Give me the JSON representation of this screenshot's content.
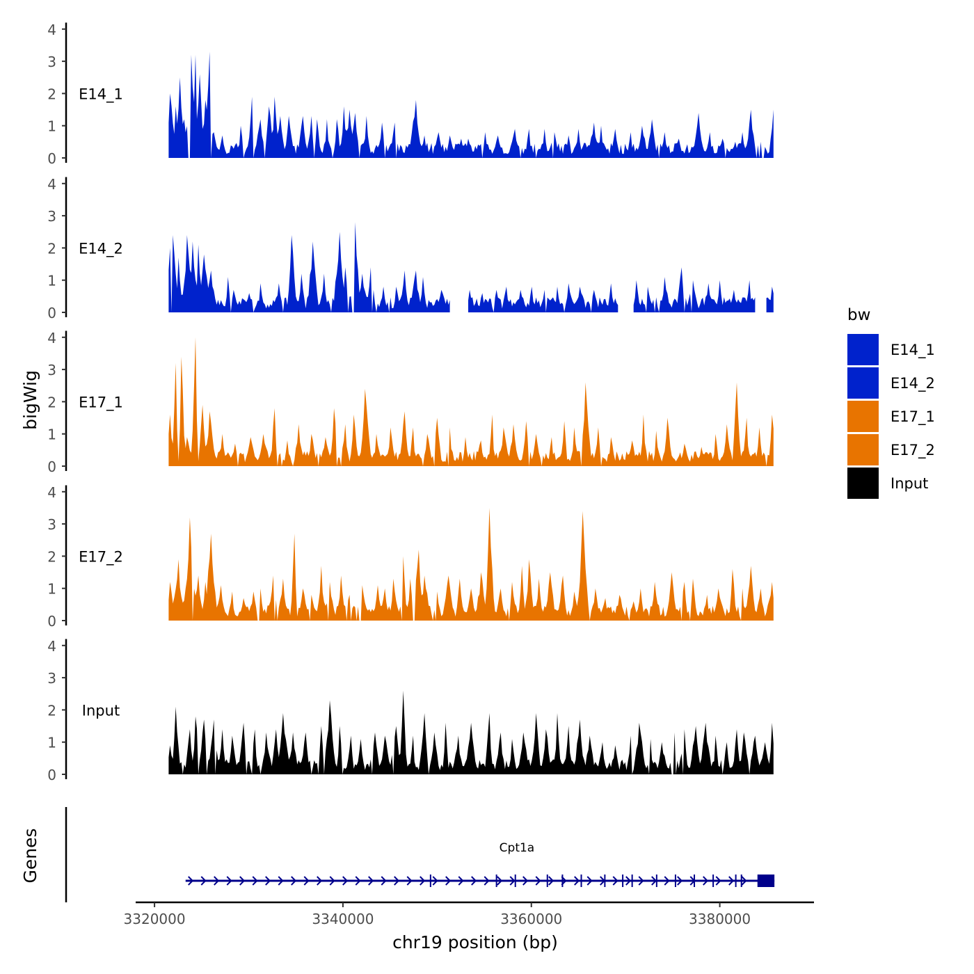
{
  "chart_data": {
    "type": "area",
    "xlabel": "chr19 position (bp)",
    "ylabel": "bigWig",
    "gene_track_label": "Genes",
    "xlim": [
      3318000,
      3390000
    ],
    "ylim": [
      0,
      4.2
    ],
    "x_ticks": [
      3320000,
      3340000,
      3360000,
      3380000
    ],
    "x_tick_labels": [
      "3320000",
      "3340000",
      "3360000",
      "3380000"
    ],
    "y_ticks": [
      0,
      1,
      2,
      3,
      4
    ],
    "y_tick_labels": [
      "0",
      "1",
      "2",
      "3",
      "4"
    ],
    "region": [
      3321500,
      3385800
    ],
    "colors": {
      "E14": "#0022cc",
      "E17": "#e87400",
      "Input": "#000000",
      "gene": "#00008b"
    },
    "legend": {
      "title": "bw",
      "entries": [
        {
          "label": "E14_1",
          "color": "#0022cc"
        },
        {
          "label": "E14_2",
          "color": "#0022cc"
        },
        {
          "label": "E17_1",
          "color": "#e87400"
        },
        {
          "label": "E17_2",
          "color": "#e87400"
        },
        {
          "label": "Input",
          "color": "#000000"
        }
      ]
    },
    "series": [
      {
        "name": "E14_1",
        "color": "#0022cc",
        "peaks": [
          [
            3321700,
            2.0
          ],
          [
            3322300,
            1.6
          ],
          [
            3322700,
            2.5
          ],
          [
            3323200,
            1.2
          ],
          [
            3323900,
            3.2
          ],
          [
            3324300,
            3.2
          ],
          [
            3324800,
            2.6
          ],
          [
            3325400,
            1.8
          ],
          [
            3325800,
            3.3
          ],
          [
            3326300,
            0.8
          ],
          [
            3327200,
            0.7
          ],
          [
            3328600,
            0.4
          ],
          [
            3329200,
            1.0
          ],
          [
            3330300,
            1.9
          ],
          [
            3331200,
            1.2
          ],
          [
            3332200,
            1.6
          ],
          [
            3332800,
            1.9
          ],
          [
            3333300,
            1.3
          ],
          [
            3334300,
            1.3
          ],
          [
            3335700,
            1.3
          ],
          [
            3336600,
            1.3
          ],
          [
            3337300,
            1.2
          ],
          [
            3338300,
            1.2
          ],
          [
            3339400,
            1.2
          ],
          [
            3340100,
            1.6
          ],
          [
            3340700,
            1.5
          ],
          [
            3341300,
            1.4
          ],
          [
            3342500,
            1.3
          ],
          [
            3344200,
            1.1
          ],
          [
            3345500,
            1.1
          ],
          [
            3347700,
            1.8
          ],
          [
            3348600,
            0.7
          ],
          [
            3350100,
            0.8
          ],
          [
            3351400,
            0.7
          ],
          [
            3352500,
            0.6
          ],
          [
            3353300,
            0.6
          ],
          [
            3355100,
            0.8
          ],
          [
            3356400,
            0.7
          ],
          [
            3358200,
            0.9
          ],
          [
            3359700,
            0.9
          ],
          [
            3361400,
            0.9
          ],
          [
            3362400,
            0.8
          ],
          [
            3363900,
            0.7
          ],
          [
            3365000,
            0.9
          ],
          [
            3366600,
            1.1
          ],
          [
            3367400,
            1.0
          ],
          [
            3368900,
            0.9
          ],
          [
            3370500,
            0.8
          ],
          [
            3371800,
            1.0
          ],
          [
            3372800,
            1.2
          ],
          [
            3374100,
            0.8
          ],
          [
            3375600,
            0.6
          ],
          [
            3377700,
            1.4
          ],
          [
            3378900,
            0.8
          ],
          [
            3380300,
            0.6
          ],
          [
            3381600,
            0.5
          ],
          [
            3382400,
            0.8
          ],
          [
            3383300,
            1.5
          ],
          [
            3384400,
            0.5
          ],
          [
            3385700,
            1.5
          ]
        ],
        "gaps": []
      },
      {
        "name": "E14_2",
        "color": "#0022cc",
        "peaks": [
          [
            3321600,
            2.0
          ],
          [
            3322000,
            2.4
          ],
          [
            3322600,
            1.7
          ],
          [
            3323500,
            2.4
          ],
          [
            3324100,
            2.2
          ],
          [
            3324700,
            2.1
          ],
          [
            3325300,
            1.8
          ],
          [
            3326000,
            1.3
          ],
          [
            3327800,
            1.1
          ],
          [
            3328400,
            0.7
          ],
          [
            3330000,
            0.6
          ],
          [
            3331300,
            0.9
          ],
          [
            3333200,
            0.9
          ],
          [
            3334600,
            2.4
          ],
          [
            3335600,
            1.2
          ],
          [
            3336800,
            2.2
          ],
          [
            3338000,
            1.2
          ],
          [
            3339600,
            2.5
          ],
          [
            3340300,
            1.4
          ],
          [
            3341300,
            2.8
          ],
          [
            3342100,
            1.2
          ],
          [
            3343000,
            1.4
          ],
          [
            3344300,
            0.8
          ],
          [
            3345700,
            0.8
          ],
          [
            3346500,
            1.3
          ],
          [
            3347700,
            1.3
          ],
          [
            3348500,
            1.1
          ],
          [
            3350500,
            0.7
          ],
          [
            3353500,
            0.7
          ],
          [
            3354800,
            0.6
          ],
          [
            3356300,
            0.7
          ],
          [
            3357300,
            0.8
          ],
          [
            3358900,
            0.7
          ],
          [
            3360000,
            0.8
          ],
          [
            3361400,
            0.7
          ],
          [
            3362800,
            0.8
          ],
          [
            3364000,
            0.9
          ],
          [
            3365200,
            0.8
          ],
          [
            3366600,
            0.7
          ],
          [
            3368400,
            0.9
          ],
          [
            3369800,
            1.1
          ],
          [
            3371200,
            1.0
          ],
          [
            3372400,
            0.8
          ],
          [
            3374200,
            1.1
          ],
          [
            3375900,
            1.4
          ],
          [
            3377100,
            1.0
          ],
          [
            3378800,
            0.9
          ],
          [
            3380000,
            1.0
          ],
          [
            3381500,
            0.7
          ],
          [
            3383100,
            1.0
          ],
          [
            3385600,
            0.8
          ]
        ],
        "gaps": [
          [
            3351500,
            3353200
          ],
          [
            3369300,
            3370800
          ],
          [
            3383900,
            3384800
          ]
        ]
      },
      {
        "name": "E17_1",
        "color": "#e87400",
        "peaks": [
          [
            3321600,
            1.6
          ],
          [
            3322200,
            3.2
          ],
          [
            3322900,
            3.4
          ],
          [
            3323500,
            0.9
          ],
          [
            3324300,
            4.0
          ],
          [
            3325100,
            1.9
          ],
          [
            3325900,
            1.7
          ],
          [
            3327200,
            1.0
          ],
          [
            3328600,
            0.7
          ],
          [
            3330200,
            0.9
          ],
          [
            3331600,
            1.0
          ],
          [
            3332700,
            1.8
          ],
          [
            3334100,
            0.8
          ],
          [
            3335300,
            1.3
          ],
          [
            3336700,
            1.0
          ],
          [
            3338200,
            0.9
          ],
          [
            3339100,
            1.8
          ],
          [
            3340200,
            1.3
          ],
          [
            3341200,
            1.6
          ],
          [
            3342400,
            2.4
          ],
          [
            3343600,
            1.0
          ],
          [
            3345100,
            1.2
          ],
          [
            3346500,
            1.7
          ],
          [
            3347400,
            1.2
          ],
          [
            3349000,
            1.0
          ],
          [
            3350000,
            1.5
          ],
          [
            3351300,
            1.2
          ],
          [
            3353000,
            0.9
          ],
          [
            3354600,
            0.8
          ],
          [
            3355800,
            1.6
          ],
          [
            3357100,
            1.2
          ],
          [
            3358100,
            1.3
          ],
          [
            3359500,
            1.4
          ],
          [
            3360500,
            1.0
          ],
          [
            3362100,
            0.9
          ],
          [
            3363500,
            1.4
          ],
          [
            3364600,
            1.2
          ],
          [
            3365800,
            2.6
          ],
          [
            3367100,
            1.2
          ],
          [
            3368500,
            0.9
          ],
          [
            3370700,
            0.8
          ],
          [
            3371900,
            1.6
          ],
          [
            3373300,
            1.1
          ],
          [
            3374500,
            1.5
          ],
          [
            3376300,
            0.7
          ],
          [
            3378100,
            0.6
          ],
          [
            3379600,
            1.0
          ],
          [
            3380800,
            1.3
          ],
          [
            3381800,
            2.6
          ],
          [
            3382800,
            1.5
          ],
          [
            3384200,
            1.2
          ],
          [
            3385600,
            1.6
          ]
        ],
        "gaps": []
      },
      {
        "name": "E17_2",
        "color": "#e87400",
        "peaks": [
          [
            3321700,
            1.2
          ],
          [
            3322500,
            1.9
          ],
          [
            3323300,
            1.0
          ],
          [
            3323800,
            3.2
          ],
          [
            3324600,
            1.4
          ],
          [
            3325400,
            1.2
          ],
          [
            3326000,
            2.7
          ],
          [
            3327000,
            1.1
          ],
          [
            3328200,
            0.9
          ],
          [
            3329500,
            0.7
          ],
          [
            3330500,
            0.9
          ],
          [
            3331300,
            1.0
          ],
          [
            3332600,
            1.4
          ],
          [
            3333600,
            1.3
          ],
          [
            3334800,
            2.7
          ],
          [
            3335800,
            1.0
          ],
          [
            3336700,
            0.8
          ],
          [
            3337700,
            1.7
          ],
          [
            3338600,
            1.2
          ],
          [
            3339800,
            1.4
          ],
          [
            3340700,
            0.8
          ],
          [
            3342100,
            1.1
          ],
          [
            3343700,
            1.1
          ],
          [
            3344400,
            1.0
          ],
          [
            3345400,
            1.3
          ],
          [
            3346400,
            2.0
          ],
          [
            3347200,
            1.3
          ],
          [
            3348000,
            2.2
          ],
          [
            3348700,
            1.4
          ],
          [
            3350000,
            0.9
          ],
          [
            3351200,
            1.4
          ],
          [
            3352400,
            1.3
          ],
          [
            3353600,
            1.0
          ],
          [
            3354700,
            1.5
          ],
          [
            3355600,
            3.5
          ],
          [
            3356700,
            1.0
          ],
          [
            3358000,
            1.2
          ],
          [
            3359000,
            1.7
          ],
          [
            3359800,
            1.9
          ],
          [
            3360800,
            1.3
          ],
          [
            3362000,
            1.5
          ],
          [
            3363300,
            1.4
          ],
          [
            3364600,
            0.9
          ],
          [
            3365500,
            3.4
          ],
          [
            3366800,
            1.0
          ],
          [
            3367800,
            0.7
          ],
          [
            3369400,
            0.8
          ],
          [
            3370800,
            0.6
          ],
          [
            3371600,
            1.0
          ],
          [
            3373100,
            1.2
          ],
          [
            3374900,
            1.5
          ],
          [
            3376200,
            1.2
          ],
          [
            3377200,
            1.3
          ],
          [
            3378600,
            0.8
          ],
          [
            3379900,
            1.0
          ],
          [
            3381400,
            1.6
          ],
          [
            3382400,
            1.0
          ],
          [
            3383300,
            1.7
          ],
          [
            3384300,
            1.0
          ],
          [
            3385500,
            1.2
          ]
        ],
        "gaps": []
      },
      {
        "name": "Input",
        "color": "#000000",
        "peaks": [
          [
            3321700,
            0.9
          ],
          [
            3322300,
            2.1
          ],
          [
            3323700,
            1.4
          ],
          [
            3324400,
            1.8
          ],
          [
            3325200,
            1.7
          ],
          [
            3326300,
            1.7
          ],
          [
            3327200,
            1.4
          ],
          [
            3328300,
            1.2
          ],
          [
            3329400,
            1.6
          ],
          [
            3330600,
            1.4
          ],
          [
            3331900,
            1.3
          ],
          [
            3332900,
            1.4
          ],
          [
            3333700,
            1.9
          ],
          [
            3334700,
            1.3
          ],
          [
            3336000,
            1.3
          ],
          [
            3337700,
            1.5
          ],
          [
            3338600,
            2.3
          ],
          [
            3339700,
            1.5
          ],
          [
            3340800,
            1.2
          ],
          [
            3341900,
            1.1
          ],
          [
            3343400,
            1.3
          ],
          [
            3344500,
            1.2
          ],
          [
            3345600,
            1.5
          ],
          [
            3346400,
            2.6
          ],
          [
            3347400,
            1.2
          ],
          [
            3348600,
            1.9
          ],
          [
            3349700,
            1.3
          ],
          [
            3350900,
            1.6
          ],
          [
            3352200,
            1.2
          ],
          [
            3353600,
            1.6
          ],
          [
            3355500,
            1.9
          ],
          [
            3356700,
            1.3
          ],
          [
            3358000,
            1.1
          ],
          [
            3359200,
            1.3
          ],
          [
            3360500,
            1.9
          ],
          [
            3361600,
            1.4
          ],
          [
            3362800,
            1.9
          ],
          [
            3363900,
            1.5
          ],
          [
            3365100,
            1.7
          ],
          [
            3366200,
            1.2
          ],
          [
            3367500,
            1.0
          ],
          [
            3368900,
            0.9
          ],
          [
            3370500,
            1.2
          ],
          [
            3371500,
            1.6
          ],
          [
            3372600,
            1.1
          ],
          [
            3373900,
            1.0
          ],
          [
            3375200,
            1.3
          ],
          [
            3376200,
            1.4
          ],
          [
            3377400,
            1.5
          ],
          [
            3378500,
            1.6
          ],
          [
            3379600,
            1.2
          ],
          [
            3380700,
            1.0
          ],
          [
            3381800,
            1.4
          ],
          [
            3382600,
            1.3
          ],
          [
            3383700,
            1.2
          ],
          [
            3384800,
            1.0
          ],
          [
            3385600,
            1.6
          ]
        ],
        "gaps": []
      }
    ],
    "gene": {
      "name": "Cpt1a",
      "start": 3323300,
      "end": 3385800,
      "strand": "+",
      "thick_start": 3384000,
      "exons": [
        3349300,
        3356300,
        3358300,
        3361700,
        3363300,
        3365300,
        3367800,
        3369700,
        3370700,
        3373300,
        3375300,
        3377300,
        3379300,
        3381700,
        3382300
      ]
    }
  }
}
